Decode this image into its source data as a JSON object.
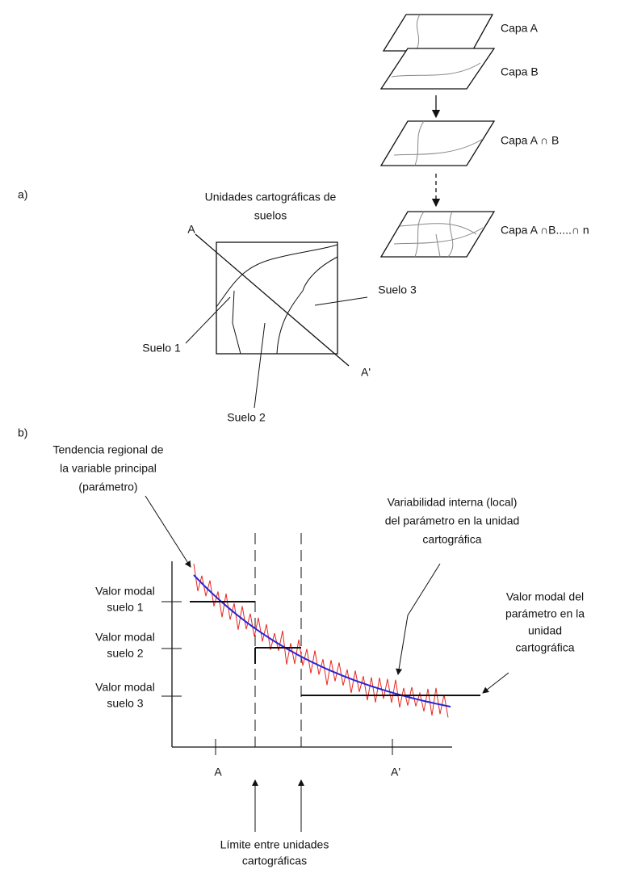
{
  "layers": [
    "Capa A",
    "Capa B",
    "Capa A ∩ B",
    "Capa A ∩B.....∩ n"
  ],
  "panel_a": {
    "label": "a)",
    "title": [
      "Unidades cartográficas de",
      "suelos"
    ],
    "section_start": "A",
    "section_end": "A'",
    "soils": [
      "Suelo 1",
      "Suelo 2",
      "Suelo 3"
    ]
  },
  "panel_b": {
    "label": "b)",
    "trend": [
      "Tendencia regional de",
      "la variable principal",
      "(parámetro)"
    ],
    "internal": [
      "Variabilidad interna (local)",
      "del parámetro en la unidad",
      "cartográfica"
    ],
    "modal_unit": [
      "Valor modal del",
      "parámetro en la",
      "unidad",
      "cartográfica"
    ],
    "modal_labels": [
      [
        "Valor modal",
        "suelo 1"
      ],
      [
        "Valor modal",
        "suelo 2"
      ],
      [
        "Valor modal",
        "suelo 3"
      ]
    ],
    "x_labels": [
      "A",
      "A'"
    ],
    "boundary": [
      "Límite entre unidades",
      "cartográficas"
    ]
  }
}
